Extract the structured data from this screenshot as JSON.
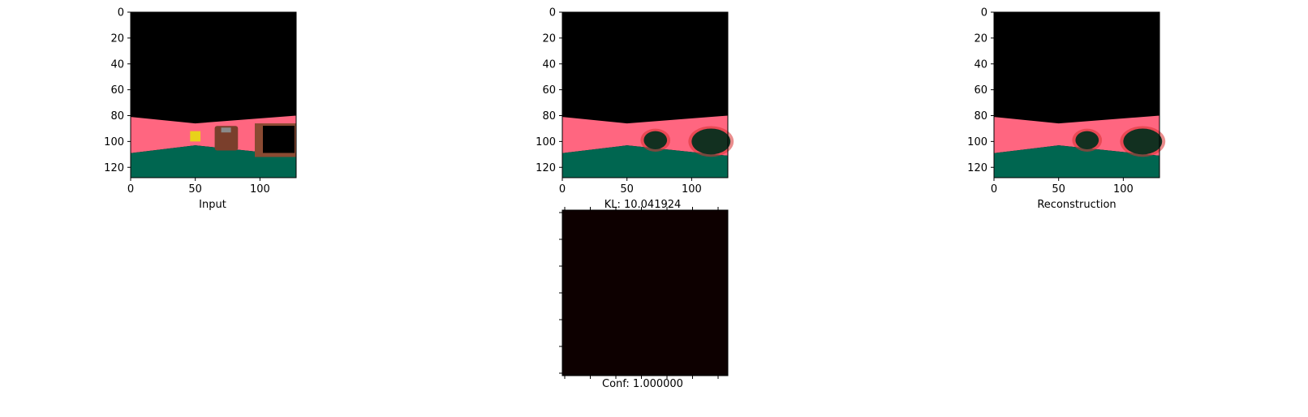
{
  "figure": {
    "panels": {
      "input": {
        "caption": "Input"
      },
      "latent": {
        "caption": "KL: 10.041924"
      },
      "reconstruction": {
        "caption": "Reconstruction"
      },
      "confidence": {
        "caption": "Conf: 1.000000"
      }
    }
  },
  "chart_data": [
    {
      "type": "heatmap",
      "id": "input",
      "xlabel": "Input",
      "xlim": [
        0,
        128
      ],
      "ylim": [
        128,
        0
      ],
      "xticks": [
        0,
        50,
        100
      ],
      "yticks": [
        0,
        20,
        40,
        60,
        80,
        100,
        120
      ],
      "image": {
        "width": 128,
        "height": 128,
        "colors": {
          "sky": "#000000",
          "wall": "#ff6680",
          "floor": "#006650",
          "crate": "#7a3f2c",
          "tv_frame": "#8a4a32",
          "pickup": "#e8d21a"
        },
        "horizon_wall_top": [
          [
            0,
            81
          ],
          [
            50,
            86
          ],
          [
            128,
            80
          ]
        ],
        "floor_top": [
          [
            0,
            109
          ],
          [
            50,
            103
          ],
          [
            128,
            111
          ]
        ],
        "objects": [
          {
            "name": "pickup",
            "x": [
              46,
              54
            ],
            "y": [
              92,
              100
            ]
          },
          {
            "name": "crate",
            "x": [
              65,
              83
            ],
            "y": [
              88,
              107
            ]
          },
          {
            "name": "tv_frame",
            "x": [
              96,
              128
            ],
            "y": [
              86,
              112
            ]
          }
        ]
      }
    },
    {
      "type": "heatmap",
      "id": "latent",
      "title": "KL: 10.041924",
      "xlim": [
        0,
        128
      ],
      "ylim": [
        128,
        0
      ],
      "xticks": [
        0,
        50,
        100
      ],
      "yticks": [
        0,
        20,
        40,
        60,
        80,
        100,
        120
      ],
      "image": {
        "width": 128,
        "height": 128,
        "colors": {
          "sky": "#000000",
          "wall": "#ff6680",
          "floor": "#006650",
          "blob": "#123020"
        },
        "horizon_wall_top": [
          [
            0,
            81
          ],
          [
            50,
            86
          ],
          [
            128,
            80
          ]
        ],
        "floor_top": [
          [
            0,
            109
          ],
          [
            50,
            103
          ],
          [
            128,
            111
          ]
        ],
        "blobs": [
          {
            "cx": 72,
            "cy": 99,
            "rx": 9,
            "ry": 7
          },
          {
            "cx": 115,
            "cy": 100,
            "rx": 15,
            "ry": 10
          }
        ]
      }
    },
    {
      "type": "heatmap",
      "id": "reconstruction",
      "xlabel": "Reconstruction",
      "xlim": [
        0,
        128
      ],
      "ylim": [
        128,
        0
      ],
      "xticks": [
        0,
        50,
        100
      ],
      "yticks": [
        0,
        20,
        40,
        60,
        80,
        100,
        120
      ],
      "image": {
        "width": 128,
        "height": 128,
        "colors": {
          "sky": "#000000",
          "wall": "#ff6680",
          "floor": "#006650",
          "blob": "#123020"
        },
        "horizon_wall_top": [
          [
            0,
            81
          ],
          [
            50,
            86
          ],
          [
            128,
            80
          ]
        ],
        "floor_top": [
          [
            0,
            109
          ],
          [
            50,
            103
          ],
          [
            128,
            111
          ]
        ],
        "blobs": [
          {
            "cx": 72,
            "cy": 99,
            "rx": 9,
            "ry": 7
          },
          {
            "cx": 115,
            "cy": 100,
            "rx": 15,
            "ry": 10
          }
        ]
      }
    },
    {
      "type": "heatmap",
      "id": "confidence",
      "xlabel": "Conf: 1.000000",
      "value": 1.0,
      "color": "#0d0000",
      "xticks": [],
      "yticks": []
    }
  ]
}
